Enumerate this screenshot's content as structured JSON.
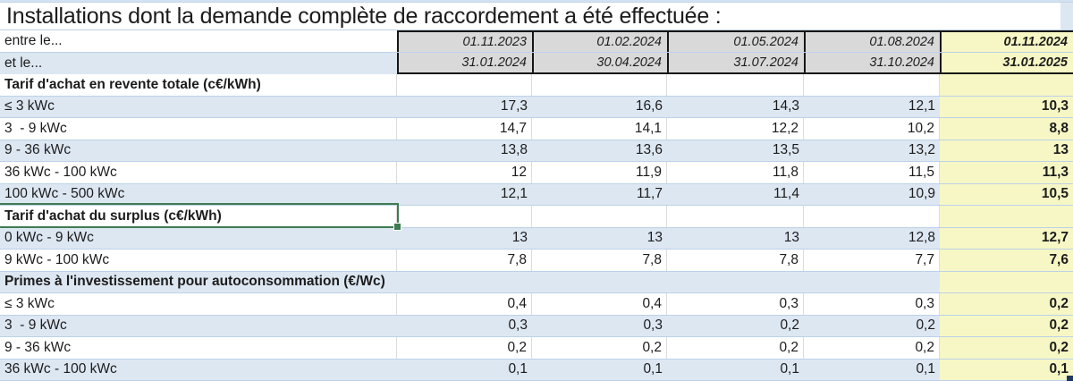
{
  "title": "Installations dont la demande complète de raccordement a été effectuée :",
  "palette": {
    "band_blue": "#dde7f2",
    "row_separator": "#bcd1e8",
    "header_gray": "#d9d9d9",
    "highlight_yellow": "#f7f7c5",
    "selection_green": "#3f7b50",
    "block_border_black": "#161616",
    "corner_handle_navy": "#1f3864"
  },
  "selection": {
    "selected_cell_label": "Tarif d'achat du surplus (c€/kWh)"
  },
  "table": {
    "rows": [
      {
        "type": "period",
        "label": "entre le...",
        "values": [
          "01.11.2023",
          "01.02.2024",
          "01.05.2024",
          "01.08.2024",
          "01.11.2024"
        ]
      },
      {
        "type": "period",
        "label": "et le...",
        "values": [
          "31.01.2024",
          "30.04.2024",
          "31.07.2024",
          "31.10.2024",
          "31.01.2025"
        ]
      },
      {
        "type": "section",
        "label": "Tarif d'achat en revente totale (c€/kWh)",
        "values": [
          "",
          "",
          "",
          "",
          ""
        ]
      },
      {
        "type": "data",
        "label": "≤ 3 kWc",
        "values": [
          "17,3",
          "16,6",
          "14,3",
          "12,1",
          "10,3"
        ]
      },
      {
        "type": "data",
        "label": "3  - 9 kWc",
        "values": [
          "14,7",
          "14,1",
          "12,2",
          "10,2",
          "8,8"
        ]
      },
      {
        "type": "data",
        "label": "9 - 36 kWc",
        "values": [
          "13,8",
          "13,6",
          "13,5",
          "13,2",
          "13"
        ]
      },
      {
        "type": "data",
        "label": "36 kWc - 100 kWc",
        "values": [
          "12",
          "11,9",
          "11,8",
          "11,5",
          "11,3"
        ]
      },
      {
        "type": "data",
        "label": "100 kWc - 500 kWc",
        "values": [
          "12,1",
          "11,7",
          "11,4",
          "10,9",
          "10,5"
        ]
      },
      {
        "type": "section",
        "label": "Tarif d'achat du surplus (c€/kWh)",
        "values": [
          "",
          "",
          "",
          "",
          ""
        ]
      },
      {
        "type": "data",
        "label": "0 kWc - 9 kWc",
        "values": [
          "13",
          "13",
          "13",
          "12,8",
          "12,7"
        ]
      },
      {
        "type": "data",
        "label": "9 kWc - 100 kWc",
        "values": [
          "7,8",
          "7,8",
          "7,8",
          "7,7",
          "7,6"
        ]
      },
      {
        "type": "section",
        "label": "Primes à l'investissement pour autoconsommation (€/Wc)",
        "values": [
          "",
          "",
          "",
          "",
          ""
        ]
      },
      {
        "type": "data",
        "label": "≤ 3 kWc",
        "values": [
          "0,4",
          "0,4",
          "0,3",
          "0,3",
          "0,2"
        ]
      },
      {
        "type": "data",
        "label": "3  - 9 kWc",
        "values": [
          "0,3",
          "0,3",
          "0,2",
          "0,2",
          "0,2"
        ]
      },
      {
        "type": "data",
        "label": "9 - 36 kWc",
        "values": [
          "0,2",
          "0,2",
          "0,2",
          "0,2",
          "0,2"
        ]
      },
      {
        "type": "data",
        "label": "36 kWc - 100 kWc",
        "values": [
          "0,1",
          "0,1",
          "0,1",
          "0,1",
          "0,1"
        ]
      }
    ]
  }
}
